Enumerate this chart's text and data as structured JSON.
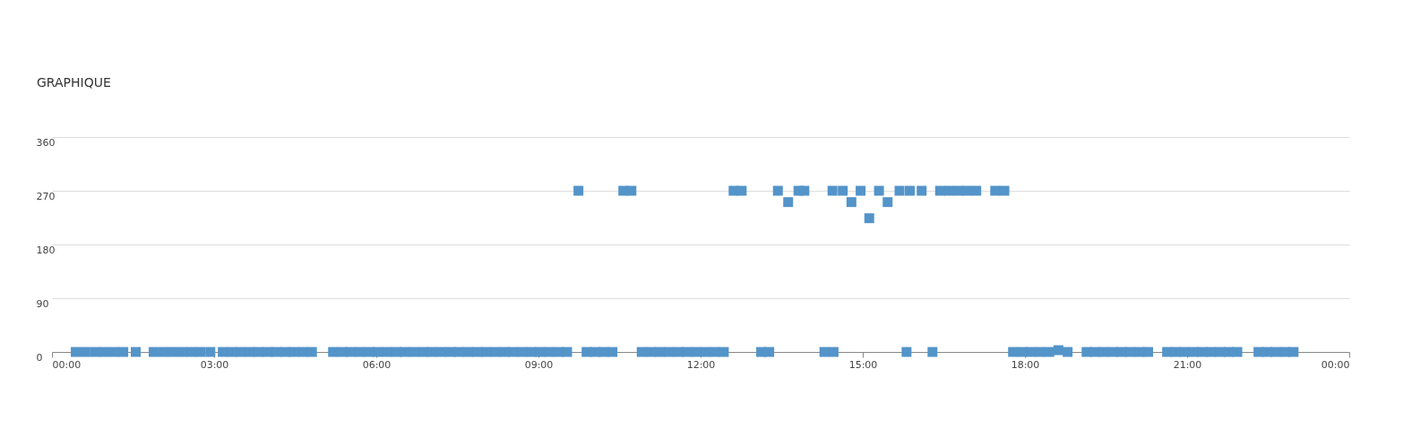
{
  "chart_data": {
    "type": "scatter",
    "title": "GRAPHIQUE",
    "series": [
      {
        "color": "#5394c9",
        "x": [
          0.44,
          0.62,
          0.8,
          0.97,
          1.15,
          1.32,
          1.55,
          1.88,
          2.06,
          2.23,
          2.41,
          2.58,
          2.75,
          2.93,
          3.16,
          3.33,
          3.49,
          3.66,
          3.82,
          3.99,
          4.15,
          4.32,
          4.48,
          4.65,
          4.81,
          5.2,
          5.37,
          5.53,
          5.7,
          5.87,
          6.03,
          6.2,
          6.37,
          6.53,
          6.7,
          6.87,
          7.03,
          7.2,
          7.37,
          7.53,
          7.7,
          7.87,
          8.03,
          8.2,
          8.37,
          8.53,
          8.7,
          8.87,
          9.03,
          9.2,
          9.37,
          9.53,
          9.89,
          10.05,
          10.21,
          10.37,
          10.91,
          11.08,
          11.25,
          11.42,
          11.59,
          11.75,
          11.92,
          12.09,
          12.26,
          12.43,
          13.12,
          13.27,
          14.29,
          14.46,
          15.81,
          16.29,
          17.78,
          17.95,
          18.11,
          18.28,
          18.45,
          18.62,
          18.79,
          19.14,
          19.3,
          19.46,
          19.63,
          19.79,
          19.95,
          20.12,
          20.28,
          20.63,
          20.79,
          20.95,
          21.12,
          21.28,
          21.44,
          21.61,
          21.77,
          21.93,
          22.32,
          22.48,
          22.64,
          22.81,
          22.97,
          9.74,
          10.57,
          10.72,
          12.61,
          12.76,
          13.43,
          13.62,
          13.81,
          13.92,
          14.44,
          14.63,
          14.79,
          14.96,
          15.12,
          15.3,
          15.46,
          15.68,
          15.87,
          16.09,
          16.43,
          16.6,
          16.77,
          16.93,
          17.1,
          17.45,
          17.62
        ],
        "values": [
          0,
          0,
          0,
          0,
          0,
          0,
          0,
          0,
          0,
          0,
          0,
          0,
          0,
          0,
          0,
          0,
          0,
          0,
          0,
          0,
          0,
          0,
          0,
          0,
          0,
          0,
          0,
          0,
          0,
          0,
          0,
          0,
          0,
          0,
          0,
          0,
          0,
          0,
          0,
          0,
          0,
          0,
          0,
          0,
          0,
          0,
          0,
          0,
          0,
          0,
          0,
          0,
          0,
          0,
          0,
          0,
          0,
          0,
          0,
          0,
          0,
          0,
          0,
          0,
          0,
          0,
          0,
          0,
          0,
          0,
          0,
          0,
          0,
          0,
          0,
          0,
          0,
          3,
          0,
          0,
          0,
          0,
          0,
          0,
          0,
          0,
          0,
          0,
          0,
          0,
          0,
          0,
          0,
          0,
          0,
          0,
          0,
          0,
          0,
          0,
          0,
          270,
          270,
          270,
          270,
          270,
          270,
          251,
          270,
          270,
          270,
          270,
          251,
          270,
          224,
          270,
          251,
          270,
          270,
          270,
          270,
          270,
          270,
          270,
          270,
          270,
          270
        ]
      }
    ],
    "xlim": [
      0,
      24
    ],
    "xticks": [
      {
        "value": 0,
        "label": "00:00"
      },
      {
        "value": 3,
        "label": "03:00"
      },
      {
        "value": 6,
        "label": "06:00"
      },
      {
        "value": 9,
        "label": "09:00"
      },
      {
        "value": 12,
        "label": "12:00"
      },
      {
        "value": 15,
        "label": "15:00"
      },
      {
        "value": 18,
        "label": "18:00"
      },
      {
        "value": 21,
        "label": "21:00"
      },
      {
        "value": 24,
        "label": "00:00"
      }
    ],
    "ylim": [
      0,
      360
    ],
    "yticks": [
      0,
      90,
      180,
      270,
      360
    ],
    "grid": "y",
    "marker": "square"
  }
}
